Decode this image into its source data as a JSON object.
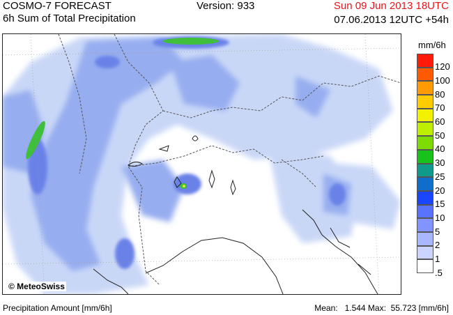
{
  "header": {
    "title": "COSMO-7 FORECAST",
    "subtitle": "6h Sum of Total Precipitation",
    "version": "Version: 933",
    "valid_time": "Sun 09 Jun 2013 18UTC",
    "run_time": "07.06.2013 12UTC +54h"
  },
  "map": {
    "copyright": "© MeteoSwiss",
    "colors": {
      "land": "#ffffff",
      "light": "#c9d7f7",
      "medium": "#96adf0",
      "strong": "#6b82e8",
      "peak_green": "#3fbf3c",
      "peak_yellow": "#d8e63a",
      "border_line": "#555555",
      "coast_line": "#222222"
    }
  },
  "legend": {
    "unit": "mm/6h",
    "levels": [
      {
        "label": "120",
        "color": "#ff1a0a"
      },
      {
        "label": "100",
        "color": "#ff5a00"
      },
      {
        "label": "80",
        "color": "#ff9a00"
      },
      {
        "label": "70",
        "color": "#ffcc00"
      },
      {
        "label": "60",
        "color": "#f2f200"
      },
      {
        "label": "50",
        "color": "#bfee00"
      },
      {
        "label": "40",
        "color": "#7edb00"
      },
      {
        "label": "30",
        "color": "#18c21a"
      },
      {
        "label": "25",
        "color": "#109a8c"
      },
      {
        "label": "20",
        "color": "#0f6ecc"
      },
      {
        "label": "15",
        "color": "#1a46ff"
      },
      {
        "label": "10",
        "color": "#5a73ff"
      },
      {
        "label": "5",
        "color": "#8294ff"
      },
      {
        "label": "2",
        "color": "#a9b7ff"
      },
      {
        "label": "1",
        "color": "#cbd3ff"
      },
      {
        "label": ".5",
        "color": "#ffffff"
      }
    ]
  },
  "footer": {
    "label": "Precipitation Amount [mm/6h]",
    "stats": "Mean:   1.544 Max:  55.723 [mm/6h]"
  }
}
